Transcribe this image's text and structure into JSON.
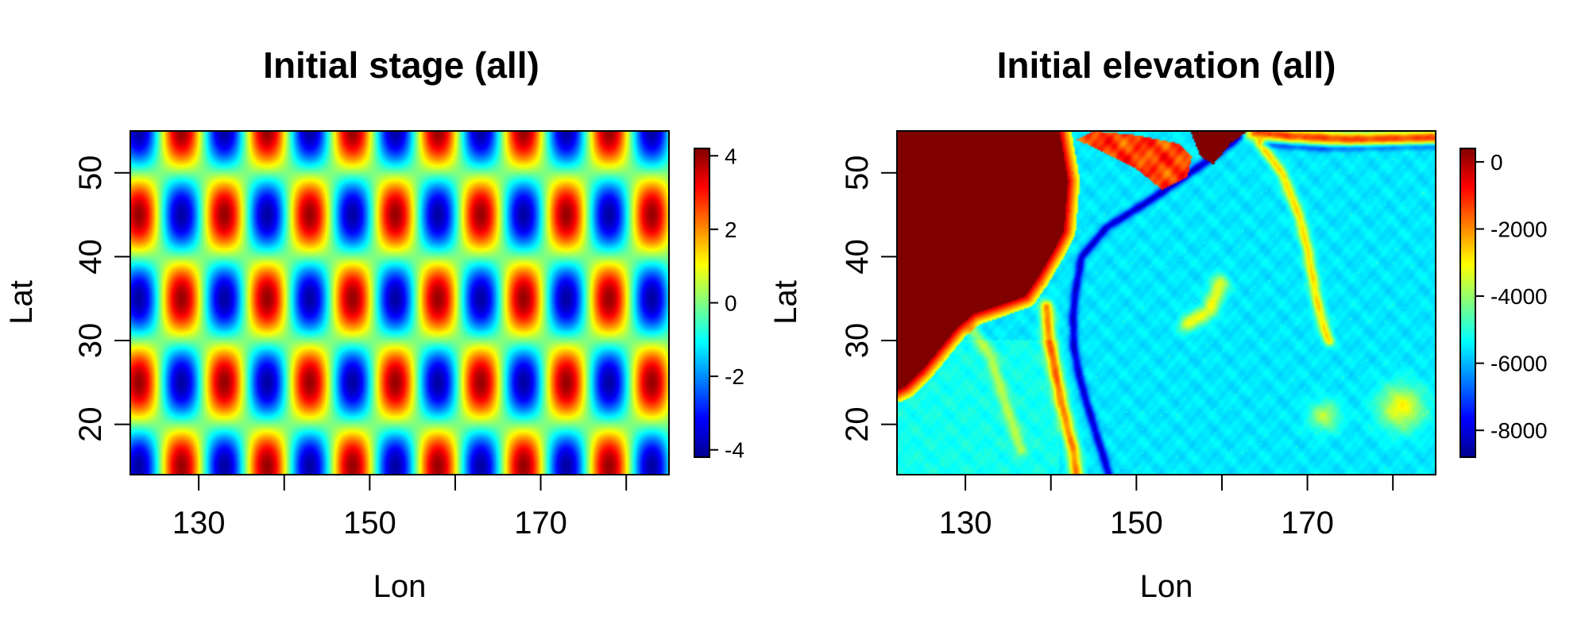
{
  "palette": [
    "#00008F",
    "#0000FF",
    "#0080FF",
    "#00FFFF",
    "#80FF80",
    "#FFFF00",
    "#FF8000",
    "#FF0000",
    "#800000"
  ],
  "chart_data": [
    {
      "type": "heatmap",
      "title": "Initial stage (all)",
      "xlabel": "Lon",
      "ylabel": "Lat",
      "xlim": [
        122,
        185
      ],
      "ylim": [
        14,
        55
      ],
      "x_ticks": [
        130,
        140,
        150,
        160,
        170,
        180
      ],
      "x_tick_labels": [
        "130",
        "",
        "150",
        "",
        "170",
        ""
      ],
      "y_ticks": [
        20,
        30,
        40,
        50
      ],
      "y_tick_labels": [
        "20",
        "30",
        "40",
        "50"
      ],
      "colorbar": {
        "range": [
          -4.2,
          4.2
        ],
        "ticks": [
          -4,
          -2,
          0,
          2,
          4
        ],
        "tick_labels": [
          "-4",
          "-2",
          "0",
          "2",
          "4"
        ]
      },
      "field": "Periodic pattern z = 4·sin(2π·lat/20)·cos(2π·(lon−3)/10): red maxima at lat 20, 30, 40, 50 and blue minima at lat 15, 25, 35, 45, 55, centered at lon ≈ 123, 133, …, 183"
    },
    {
      "type": "heatmap",
      "title": "Initial elevation (all)",
      "xlabel": "Lon",
      "ylabel": "Lat",
      "xlim": [
        122,
        185
      ],
      "ylim": [
        14,
        55
      ],
      "x_ticks": [
        130,
        140,
        150,
        160,
        170,
        180
      ],
      "x_tick_labels": [
        "130",
        "",
        "150",
        "",
        "170",
        ""
      ],
      "y_ticks": [
        20,
        30,
        40,
        50
      ],
      "y_tick_labels": [
        "20",
        "30",
        "40",
        "50"
      ],
      "colorbar": {
        "range": [
          -8800,
          400
        ],
        "ticks": [
          -8000,
          -6000,
          -4000,
          -2000,
          0
        ],
        "tick_labels": [
          "-8000",
          "-6000",
          "-4000",
          "-2000",
          "0"
        ]
      },
      "field": "Bathymetry of the NW Pacific: land (≥0 m) in the NW corner and Kamchatka, deep basin ≈ −5500 to −6000 m, trenches to ≈ −8000 m along the Kuril–Japan–Izu–Bonin arc"
    }
  ]
}
